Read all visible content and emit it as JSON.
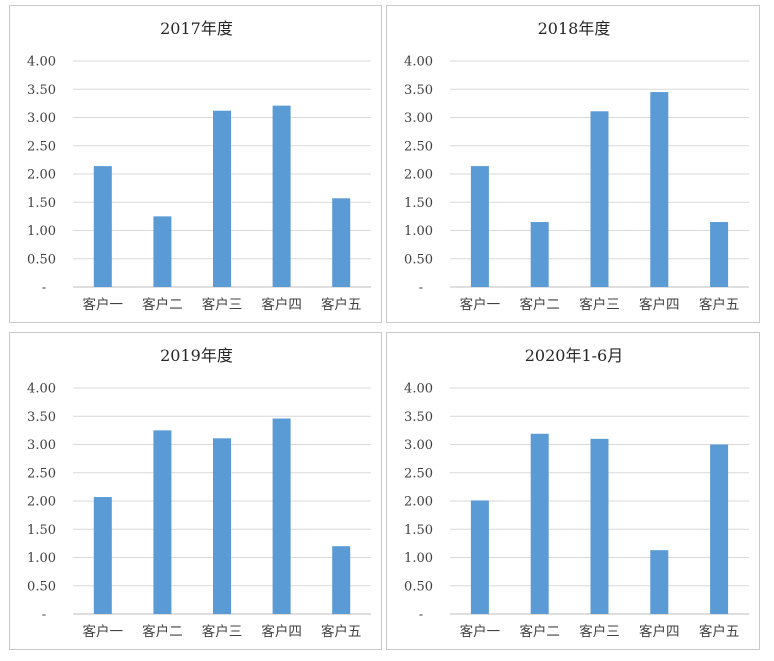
{
  "chart_data": [
    {
      "type": "bar",
      "title": "2017年度",
      "categories": [
        "客户一",
        "客户二",
        "客户三",
        "客户四",
        "客户五"
      ],
      "values": [
        2.14,
        1.25,
        3.12,
        3.21,
        1.57
      ],
      "yticks": [
        "-",
        "0.50",
        "1.00",
        "1.50",
        "2.00",
        "2.50",
        "3.00",
        "3.50",
        "4.00"
      ],
      "ylim": [
        0,
        4
      ],
      "grid": true,
      "color": "#5b9bd5"
    },
    {
      "type": "bar",
      "title": "2018年度",
      "categories": [
        "客户一",
        "客户二",
        "客户三",
        "客户四",
        "客户五"
      ],
      "values": [
        2.14,
        1.15,
        3.11,
        3.45,
        1.15
      ],
      "yticks": [
        "-",
        "0.50",
        "1.00",
        "1.50",
        "2.00",
        "2.50",
        "3.00",
        "3.50",
        "4.00"
      ],
      "ylim": [
        0,
        4
      ],
      "grid": true,
      "color": "#5b9bd5"
    },
    {
      "type": "bar",
      "title": "2019年度",
      "categories": [
        "客户一",
        "客户二",
        "客户三",
        "客户四",
        "客户五"
      ],
      "values": [
        2.07,
        3.25,
        3.11,
        3.46,
        1.2
      ],
      "yticks": [
        "-",
        "0.50",
        "1.00",
        "1.50",
        "2.00",
        "2.50",
        "3.00",
        "3.50",
        "4.00"
      ],
      "ylim": [
        0,
        4
      ],
      "grid": true,
      "color": "#5b9bd5"
    },
    {
      "type": "bar",
      "title": "2020年1-6月",
      "categories": [
        "客户一",
        "客户二",
        "客户三",
        "客户四",
        "客户五"
      ],
      "values": [
        2.01,
        3.19,
        3.1,
        1.13,
        3.0
      ],
      "yticks": [
        "-",
        "0.50",
        "1.00",
        "1.50",
        "2.00",
        "2.50",
        "3.00",
        "3.50",
        "4.00"
      ],
      "ylim": [
        0,
        4
      ],
      "grid": true,
      "color": "#5b9bd5"
    }
  ]
}
